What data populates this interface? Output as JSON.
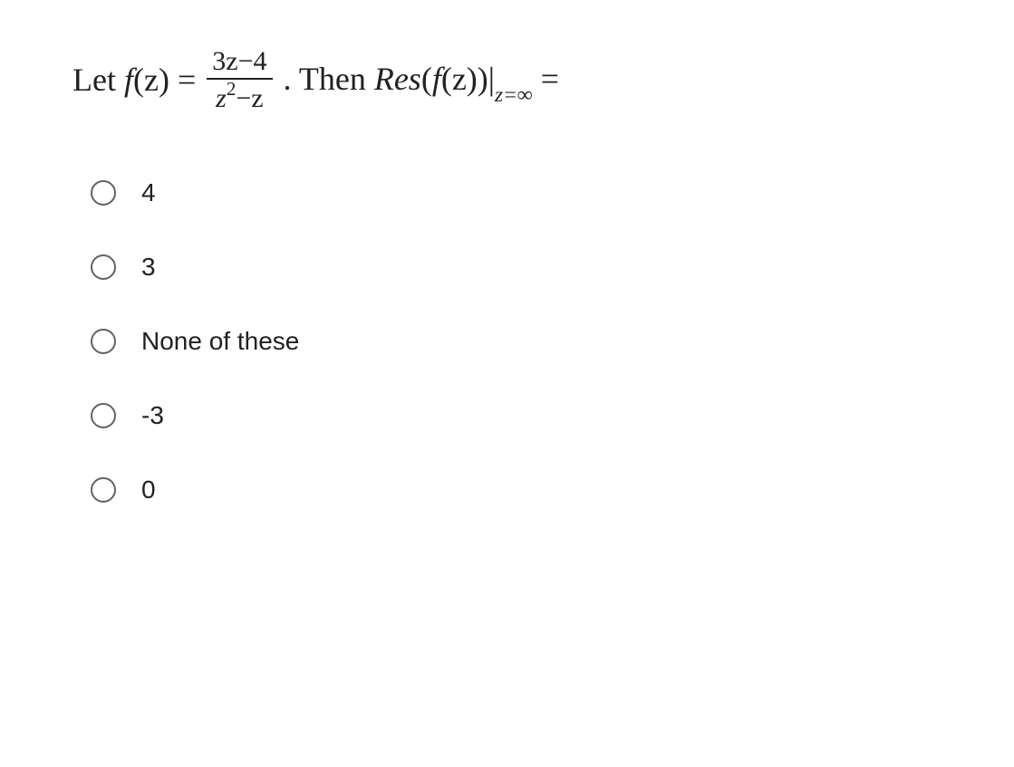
{
  "question": {
    "prefix": "Let ",
    "func": "f",
    "funcArg": "(z) = ",
    "fraction": {
      "numerator": "3z−4",
      "denominator_z": "z",
      "denominator_exp": "2",
      "denominator_rest": "−z"
    },
    "mid": ". Then ",
    "res_text": "Res",
    "res_open": "(",
    "res_f": "f",
    "res_arg": "(z)",
    "res_close": ")|",
    "sub_z": "z=∞",
    "equals": " ="
  },
  "options": {
    "items": [
      {
        "label": "4"
      },
      {
        "label": "3"
      },
      {
        "label": "None of these"
      },
      {
        "label": "-3"
      },
      {
        "label": "0"
      }
    ]
  },
  "colors": {
    "text": "#202124",
    "radio_border": "#5f6368",
    "background": "#ffffff"
  }
}
